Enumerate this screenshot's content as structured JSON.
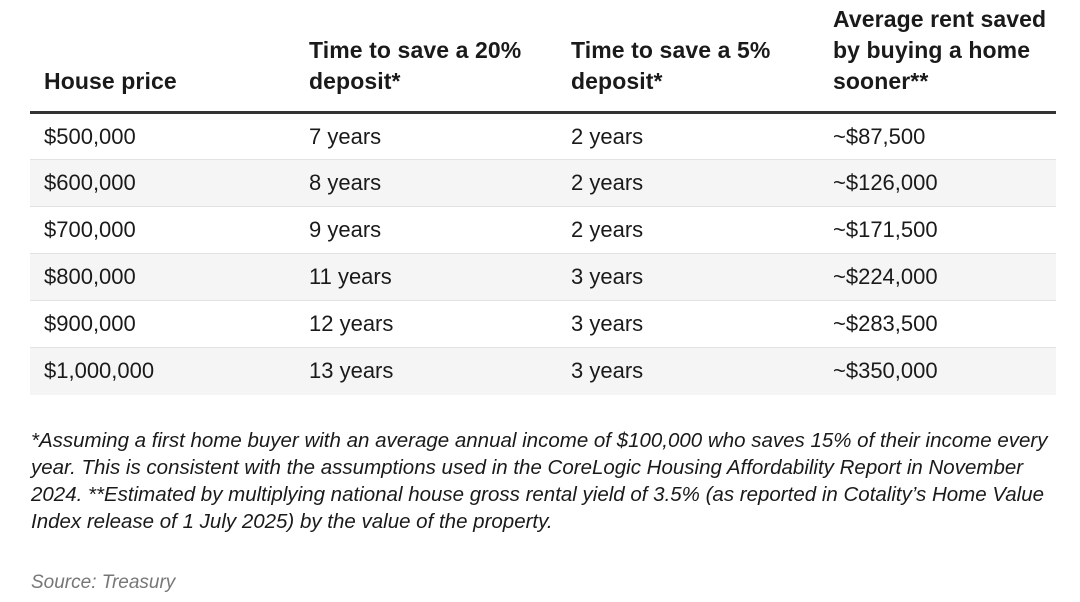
{
  "table": {
    "headers": [
      "House price",
      "Time to save a 20% deposit*",
      "Time to save a 5% deposit*",
      "Average rent saved by buying a home sooner**"
    ],
    "rows": [
      [
        "$500,000",
        "7 years",
        "2 years",
        "~$87,500"
      ],
      [
        "$600,000",
        "8 years",
        "2 years",
        "~$126,000"
      ],
      [
        "$700,000",
        "9 years",
        "2 years",
        "~$171,500"
      ],
      [
        "$800,000",
        "11 years",
        "3 years",
        "~$224,000"
      ],
      [
        "$900,000",
        "12 years",
        "3 years",
        "~$283,500"
      ],
      [
        "$1,000,000",
        "13 years",
        "3 years",
        "~$350,000"
      ]
    ],
    "row_stripe_color": "#f5f5f5",
    "header_rule_color": "#333333"
  },
  "footnote": "*Assuming a first home buyer with an average annual income of $100,000 who saves 15% of their income every year. This is consistent with the assumptions used in the CoreLogic Housing Affordability Report in November 2024. **Estimated by multiplying national house gross rental yield of 3.5% (as reported in Cotality’s Home Value Index release of 1 July 2025) by the value of the property.",
  "source": "Source: Treasury"
}
